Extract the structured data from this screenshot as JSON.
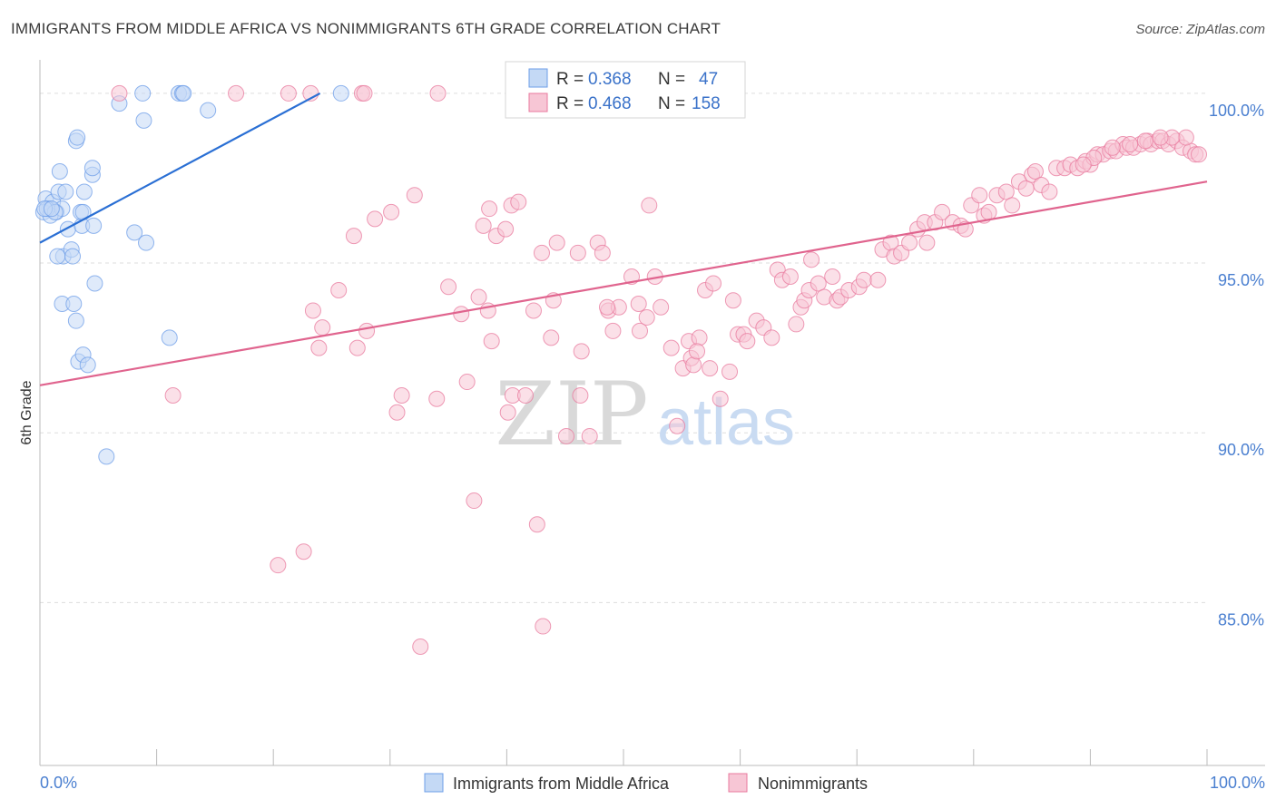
{
  "title": "IMMIGRANTS FROM MIDDLE AFRICA VS NONIMMIGRANTS 6TH GRADE CORRELATION CHART",
  "source": "Source: ZipAtlas.com",
  "watermark": {
    "zip": "ZIP",
    "atlas": "atlas"
  },
  "chart_data": {
    "type": "scatter",
    "ylabel": "6th Grade",
    "xlim": [
      0,
      100
    ],
    "ylim": [
      80.2,
      101.2
    ],
    "x_tick_labels": [
      "0.0%",
      "100.0%"
    ],
    "y_ticks": [
      100,
      95,
      90,
      85
    ],
    "y_tick_labels": [
      "100.0%",
      "95.0%",
      "90.0%",
      "85.0%"
    ],
    "legend": [
      {
        "r_label": "R =",
        "r_value": "0.368",
        "n_label": "N =",
        "n_value": "47"
      },
      {
        "r_label": "R =",
        "r_value": "0.468",
        "n_label": "N =",
        "n_value": "158"
      }
    ],
    "series": [
      {
        "name": "Immigrants from Middle Africa",
        "color": "#6d9ee8",
        "fill": "#c4d9f5",
        "trend": {
          "x1": 0,
          "y1": 95.6,
          "x2": 24,
          "y2": 100.0
        },
        "points": [
          [
            0.5,
            96.9
          ],
          [
            0.8,
            96.6
          ],
          [
            1.1,
            96.8
          ],
          [
            0.3,
            96.5
          ],
          [
            1.4,
            96.5
          ],
          [
            0.9,
            96.4
          ],
          [
            1.6,
            97.1
          ],
          [
            1.7,
            97.7
          ],
          [
            1.9,
            96.6
          ],
          [
            2.2,
            97.1
          ],
          [
            0.6,
            96.6
          ],
          [
            1.3,
            96.5
          ],
          [
            2.4,
            96.0
          ],
          [
            2.0,
            95.2
          ],
          [
            1.5,
            95.2
          ],
          [
            2.7,
            95.4
          ],
          [
            2.8,
            95.2
          ],
          [
            3.1,
            98.6
          ],
          [
            3.2,
            98.7
          ],
          [
            3.6,
            96.1
          ],
          [
            3.5,
            96.5
          ],
          [
            3.8,
            97.1
          ],
          [
            4.5,
            97.6
          ],
          [
            4.6,
            96.1
          ],
          [
            4.5,
            97.8
          ],
          [
            3.7,
            96.5
          ],
          [
            4.7,
            94.4
          ],
          [
            1.9,
            93.8
          ],
          [
            2.9,
            93.8
          ],
          [
            3.1,
            93.3
          ],
          [
            3.3,
            92.1
          ],
          [
            3.7,
            92.3
          ],
          [
            4.1,
            92.0
          ],
          [
            5.7,
            89.3
          ],
          [
            6.8,
            99.7
          ],
          [
            8.8,
            100.0
          ],
          [
            8.9,
            99.2
          ],
          [
            11.9,
            100.0
          ],
          [
            12.2,
            100.0
          ],
          [
            12.3,
            100.0
          ],
          [
            14.4,
            99.5
          ],
          [
            8.1,
            95.9
          ],
          [
            9.1,
            95.6
          ],
          [
            11.1,
            92.8
          ],
          [
            0.4,
            96.6
          ],
          [
            25.8,
            100.0
          ],
          [
            1.0,
            96.6
          ]
        ]
      },
      {
        "name": "Nonimmigrants",
        "color": "#e8799e",
        "fill": "#f7c6d5",
        "trend": {
          "x1": 0,
          "y1": 91.4,
          "x2": 100,
          "y2": 97.4
        },
        "points": [
          [
            6.8,
            100.0
          ],
          [
            16.8,
            100.0
          ],
          [
            21.3,
            100.0
          ],
          [
            23.2,
            100.0
          ],
          [
            27.6,
            100.0
          ],
          [
            27.8,
            100.0
          ],
          [
            34.1,
            100.0
          ],
          [
            11.4,
            91.1
          ],
          [
            23.4,
            93.6
          ],
          [
            25.6,
            94.2
          ],
          [
            24.2,
            93.1
          ],
          [
            23.9,
            92.5
          ],
          [
            27.2,
            92.5
          ],
          [
            26.9,
            95.8
          ],
          [
            28.0,
            93.0
          ],
          [
            28.7,
            96.3
          ],
          [
            30.1,
            96.5
          ],
          [
            32.1,
            97.0
          ],
          [
            31.0,
            91.1
          ],
          [
            30.6,
            90.6
          ],
          [
            34.0,
            91.0
          ],
          [
            35.0,
            94.3
          ],
          [
            36.1,
            93.5
          ],
          [
            36.6,
            91.5
          ],
          [
            37.6,
            94.0
          ],
          [
            38.0,
            96.1
          ],
          [
            38.5,
            96.6
          ],
          [
            37.2,
            88.0
          ],
          [
            38.4,
            93.6
          ],
          [
            39.1,
            95.8
          ],
          [
            39.9,
            96.0
          ],
          [
            40.4,
            96.7
          ],
          [
            41.0,
            96.8
          ],
          [
            40.1,
            90.6
          ],
          [
            40.5,
            91.1
          ],
          [
            41.6,
            91.1
          ],
          [
            42.3,
            93.6
          ],
          [
            43.8,
            92.8
          ],
          [
            44.0,
            93.9
          ],
          [
            43.0,
            95.3
          ],
          [
            44.3,
            95.6
          ],
          [
            46.1,
            95.3
          ],
          [
            45.1,
            89.9
          ],
          [
            47.1,
            89.9
          ],
          [
            47.8,
            95.6
          ],
          [
            48.2,
            95.3
          ],
          [
            49.1,
            93.0
          ],
          [
            48.7,
            93.6
          ],
          [
            49.6,
            93.7
          ],
          [
            50.7,
            94.6
          ],
          [
            51.3,
            93.8
          ],
          [
            51.4,
            93.0
          ],
          [
            52.0,
            93.4
          ],
          [
            52.2,
            96.7
          ],
          [
            52.7,
            94.6
          ],
          [
            53.2,
            93.7
          ],
          [
            54.1,
            92.5
          ],
          [
            54.6,
            90.2
          ],
          [
            55.1,
            91.9
          ],
          [
            55.6,
            92.7
          ],
          [
            55.8,
            92.2
          ],
          [
            56.0,
            92.0
          ],
          [
            56.5,
            92.8
          ],
          [
            57.0,
            94.2
          ],
          [
            57.7,
            94.4
          ],
          [
            57.4,
            91.9
          ],
          [
            58.3,
            91.0
          ],
          [
            59.1,
            91.8
          ],
          [
            59.4,
            93.9
          ],
          [
            59.8,
            92.9
          ],
          [
            60.3,
            92.9
          ],
          [
            60.6,
            92.7
          ],
          [
            61.4,
            93.3
          ],
          [
            62.0,
            93.1
          ],
          [
            62.7,
            92.8
          ],
          [
            63.2,
            94.8
          ],
          [
            63.6,
            94.5
          ],
          [
            64.3,
            94.6
          ],
          [
            64.8,
            93.2
          ],
          [
            65.2,
            93.7
          ],
          [
            65.5,
            93.9
          ],
          [
            65.9,
            94.2
          ],
          [
            66.1,
            95.1
          ],
          [
            66.7,
            94.4
          ],
          [
            67.2,
            94.0
          ],
          [
            67.9,
            94.6
          ],
          [
            68.3,
            93.9
          ],
          [
            68.6,
            94.0
          ],
          [
            69.3,
            94.2
          ],
          [
            70.2,
            94.3
          ],
          [
            70.6,
            94.5
          ],
          [
            71.8,
            94.5
          ],
          [
            72.2,
            95.4
          ],
          [
            72.9,
            95.6
          ],
          [
            73.2,
            95.2
          ],
          [
            73.8,
            95.3
          ],
          [
            74.5,
            95.6
          ],
          [
            75.2,
            96.0
          ],
          [
            75.8,
            96.2
          ],
          [
            76.0,
            95.6
          ],
          [
            76.7,
            96.2
          ],
          [
            77.3,
            96.5
          ],
          [
            78.2,
            96.2
          ],
          [
            78.9,
            96.1
          ],
          [
            79.3,
            96.0
          ],
          [
            79.8,
            96.7
          ],
          [
            80.5,
            97.0
          ],
          [
            80.9,
            96.4
          ],
          [
            81.3,
            96.5
          ],
          [
            82.0,
            97.0
          ],
          [
            82.8,
            97.1
          ],
          [
            83.3,
            96.7
          ],
          [
            83.9,
            97.4
          ],
          [
            84.5,
            97.2
          ],
          [
            85.0,
            97.6
          ],
          [
            85.3,
            97.7
          ],
          [
            85.8,
            97.3
          ],
          [
            86.5,
            97.1
          ],
          [
            87.1,
            97.8
          ],
          [
            87.8,
            97.8
          ],
          [
            88.3,
            97.9
          ],
          [
            88.9,
            97.8
          ],
          [
            89.6,
            98.0
          ],
          [
            90.0,
            97.9
          ],
          [
            90.6,
            98.2
          ],
          [
            91.1,
            98.2
          ],
          [
            91.7,
            98.3
          ],
          [
            92.2,
            98.3
          ],
          [
            92.8,
            98.5
          ],
          [
            93.1,
            98.4
          ],
          [
            93.7,
            98.4
          ],
          [
            94.3,
            98.5
          ],
          [
            94.9,
            98.6
          ],
          [
            95.2,
            98.5
          ],
          [
            95.8,
            98.6
          ],
          [
            96.2,
            98.6
          ],
          [
            96.7,
            98.5
          ],
          [
            97.4,
            98.6
          ],
          [
            97.9,
            98.4
          ],
          [
            98.6,
            98.3
          ],
          [
            99.0,
            98.2
          ],
          [
            99.3,
            98.2
          ],
          [
            98.2,
            98.7
          ],
          [
            97.0,
            98.7
          ],
          [
            96.0,
            98.7
          ],
          [
            94.7,
            98.6
          ],
          [
            93.4,
            98.5
          ],
          [
            91.9,
            98.4
          ],
          [
            90.3,
            98.1
          ],
          [
            89.4,
            97.9
          ],
          [
            20.4,
            86.1
          ],
          [
            22.6,
            86.5
          ],
          [
            42.6,
            87.3
          ],
          [
            43.1,
            84.3
          ],
          [
            32.6,
            83.7
          ],
          [
            46.3,
            91.1
          ],
          [
            48.6,
            93.7
          ],
          [
            46.4,
            92.4
          ],
          [
            38.7,
            92.7
          ],
          [
            56.3,
            92.4
          ]
        ]
      }
    ]
  }
}
